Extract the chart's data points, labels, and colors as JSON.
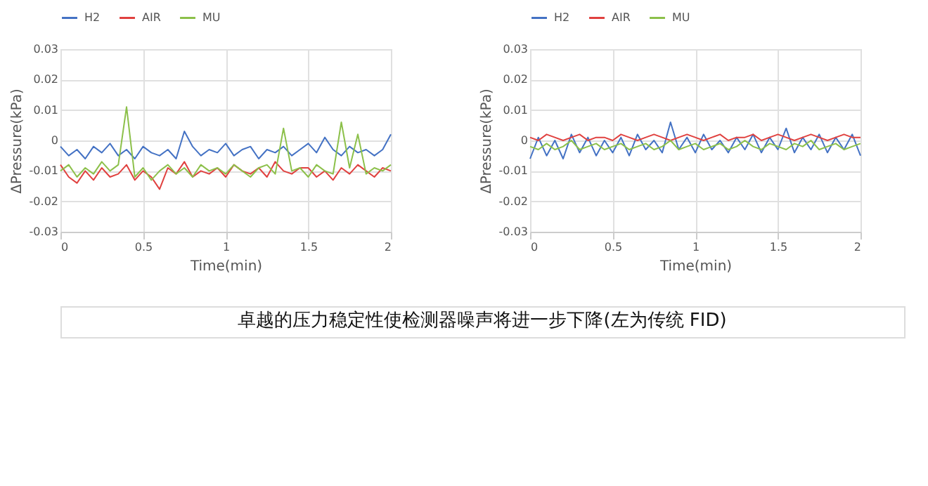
{
  "chart_data": [
    {
      "type": "line",
      "xlabel": "Time(min)",
      "ylabel": "ΔPressure(kPa)",
      "xlim": [
        0,
        2
      ],
      "xticks": [
        0,
        0.5,
        1,
        1.5,
        2
      ],
      "ylim": [
        -0.03,
        0.03
      ],
      "yticks": [
        -0.03,
        -0.02,
        -0.01,
        0,
        0.01,
        0.02,
        0.03
      ],
      "grid": true,
      "legend": "top",
      "line_style": "solid",
      "x": [
        0,
        0.05,
        0.1,
        0.15,
        0.2,
        0.25,
        0.3,
        0.35,
        0.4,
        0.45,
        0.5,
        0.55,
        0.6,
        0.65,
        0.7,
        0.75,
        0.8,
        0.85,
        0.9,
        0.95,
        1,
        1.05,
        1.1,
        1.15,
        1.2,
        1.25,
        1.3,
        1.35,
        1.4,
        1.45,
        1.5,
        1.55,
        1.6,
        1.65,
        1.7,
        1.75,
        1.8,
        1.85,
        1.9,
        1.95,
        2
      ],
      "series": [
        {
          "name": "H2",
          "color": "#4472c4",
          "values": [
            -0.002,
            -0.005,
            -0.003,
            -0.006,
            -0.002,
            -0.004,
            -0.001,
            -0.005,
            -0.003,
            -0.006,
            -0.002,
            -0.004,
            -0.005,
            -0.003,
            -0.006,
            0.003,
            -0.002,
            -0.005,
            -0.003,
            -0.004,
            -0.001,
            -0.005,
            -0.003,
            -0.002,
            -0.006,
            -0.003,
            -0.004,
            -0.002,
            -0.005,
            -0.003,
            -0.001,
            -0.004,
            0.001,
            -0.003,
            -0.005,
            -0.002,
            -0.004,
            -0.003,
            -0.005,
            -0.003,
            0.002
          ]
        },
        {
          "name": "AIR",
          "color": "#e0413f",
          "values": [
            -0.008,
            -0.012,
            -0.014,
            -0.01,
            -0.013,
            -0.009,
            -0.012,
            -0.011,
            -0.008,
            -0.013,
            -0.01,
            -0.012,
            -0.016,
            -0.009,
            -0.011,
            -0.007,
            -0.012,
            -0.01,
            -0.011,
            -0.009,
            -0.012,
            -0.008,
            -0.01,
            -0.011,
            -0.009,
            -0.012,
            -0.007,
            -0.01,
            -0.011,
            -0.009,
            -0.009,
            -0.012,
            -0.01,
            -0.013,
            -0.009,
            -0.011,
            -0.008,
            -0.01,
            -0.012,
            -0.009,
            -0.01
          ]
        },
        {
          "name": "MU",
          "color": "#8cc04a",
          "values": [
            -0.01,
            -0.008,
            -0.012,
            -0.009,
            -0.011,
            -0.007,
            -0.01,
            -0.008,
            0.011,
            -0.012,
            -0.009,
            -0.013,
            -0.01,
            -0.008,
            -0.011,
            -0.009,
            -0.012,
            -0.008,
            -0.01,
            -0.009,
            -0.011,
            -0.008,
            -0.01,
            -0.012,
            -0.009,
            -0.008,
            -0.011,
            0.004,
            -0.01,
            -0.009,
            -0.012,
            -0.008,
            -0.01,
            -0.011,
            0.006,
            -0.009,
            0.002,
            -0.011,
            -0.009,
            -0.01,
            -0.008
          ]
        }
      ]
    },
    {
      "type": "line",
      "xlabel": "Time(min)",
      "ylabel": "ΔPressure(kPa)",
      "xlim": [
        0,
        2
      ],
      "xticks": [
        0,
        0.5,
        1,
        1.5,
        2
      ],
      "ylim": [
        -0.03,
        0.03
      ],
      "yticks": [
        -0.03,
        -0.02,
        -0.01,
        0,
        0.01,
        0.02,
        0.03
      ],
      "grid": true,
      "legend": "top",
      "line_style": "solid",
      "x": [
        0,
        0.05,
        0.1,
        0.15,
        0.2,
        0.25,
        0.3,
        0.35,
        0.4,
        0.45,
        0.5,
        0.55,
        0.6,
        0.65,
        0.7,
        0.75,
        0.8,
        0.85,
        0.9,
        0.95,
        1,
        1.05,
        1.1,
        1.15,
        1.2,
        1.25,
        1.3,
        1.35,
        1.4,
        1.45,
        1.5,
        1.55,
        1.6,
        1.65,
        1.7,
        1.75,
        1.8,
        1.85,
        1.9,
        1.95,
        2
      ],
      "series": [
        {
          "name": "H2",
          "color": "#4472c4",
          "values": [
            -0.006,
            0.001,
            -0.005,
            0.0,
            -0.006,
            0.002,
            -0.004,
            0.001,
            -0.005,
            0.0,
            -0.004,
            0.001,
            -0.005,
            0.002,
            -0.003,
            0.0,
            -0.004,
            0.006,
            -0.003,
            0.001,
            -0.004,
            0.002,
            -0.003,
            0.0,
            -0.004,
            0.001,
            -0.003,
            0.002,
            -0.004,
            0.001,
            -0.003,
            0.004,
            -0.004,
            0.001,
            -0.003,
            0.002,
            -0.004,
            0.001,
            -0.003,
            0.002,
            -0.005
          ]
        },
        {
          "name": "AIR",
          "color": "#e0413f",
          "values": [
            0.001,
            0.0,
            0.002,
            0.001,
            0.0,
            0.001,
            0.002,
            0.0,
            0.001,
            0.001,
            0.0,
            0.002,
            0.001,
            0.0,
            0.001,
            0.002,
            0.001,
            0.0,
            0.001,
            0.002,
            0.001,
            0.0,
            0.001,
            0.002,
            0.0,
            0.001,
            0.001,
            0.002,
            0.0,
            0.001,
            0.002,
            0.001,
            0.0,
            0.001,
            0.002,
            0.001,
            0.0,
            0.001,
            0.002,
            0.001,
            0.001
          ]
        },
        {
          "name": "MU",
          "color": "#8cc04a",
          "values": [
            -0.002,
            -0.003,
            -0.001,
            -0.003,
            -0.002,
            0.0,
            -0.003,
            -0.002,
            -0.001,
            -0.003,
            -0.002,
            -0.001,
            -0.003,
            -0.002,
            -0.001,
            -0.003,
            -0.002,
            0.0,
            -0.003,
            -0.002,
            -0.001,
            -0.003,
            -0.002,
            -0.001,
            -0.003,
            -0.002,
            0.0,
            -0.002,
            -0.003,
            -0.001,
            -0.002,
            -0.003,
            -0.001,
            -0.002,
            0.0,
            -0.003,
            -0.002,
            -0.001,
            -0.003,
            -0.002,
            -0.001
          ]
        }
      ]
    },
    {
      "type": "other",
      "annotations": [
        "卓越的压力稳定性使检测器噪声将进一步下降(左为传统 FID)"
      ]
    }
  ]
}
